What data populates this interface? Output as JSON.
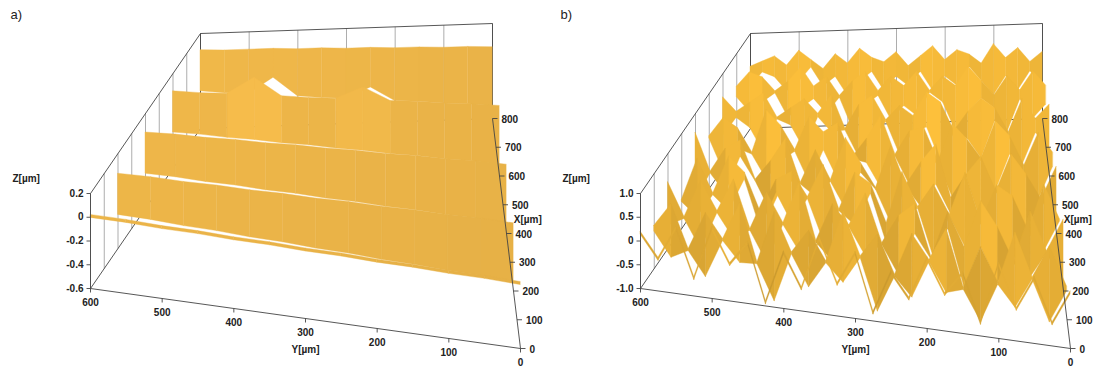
{
  "chart_data": [
    {
      "type": "surface",
      "title": "a)",
      "x_label": "X[µm]",
      "y_label": "Y[µm]",
      "z_label": "Z[µm]",
      "xlim": [
        0,
        800
      ],
      "xticks": [
        0,
        100,
        200,
        300,
        400,
        500,
        600,
        700,
        800
      ],
      "ylim": [
        0,
        600
      ],
      "yticks": [
        0,
        100,
        200,
        300,
        400,
        500,
        600
      ],
      "zlim": [
        -0.6,
        0.2
      ],
      "zticks": [
        0.2,
        0,
        -0.2,
        -0.4,
        -0.6
      ],
      "grid": true,
      "color": "#e2ad45",
      "x": [
        0,
        200,
        400,
        600,
        800
      ],
      "y": [
        0,
        50,
        100,
        150,
        200,
        250,
        300,
        350,
        400,
        450,
        500,
        550,
        600
      ],
      "z": [
        [
          -0.04,
          -0.03,
          -0.03,
          -0.02,
          -0.02,
          -0.01,
          -0.01,
          0,
          0,
          0.01,
          0.01,
          0.02,
          0.02
        ],
        [
          -0.03,
          -0.02,
          -0.02,
          -0.01,
          -0.01,
          0,
          0,
          0.01,
          0.01,
          0.02,
          0.02,
          0.03,
          0.03
        ],
        [
          -0.02,
          -0.01,
          -0.01,
          0,
          0,
          0.01,
          0.01,
          0.02,
          0.02,
          0.03,
          0.03,
          0.04,
          0.04
        ],
        [
          -0.01,
          0,
          0,
          0.01,
          0.01,
          0.12,
          0.02,
          0.02,
          0.03,
          0.18,
          0.04,
          0.04,
          0.05
        ],
        [
          0,
          0.01,
          0.01,
          0.02,
          0.02,
          0.03,
          0.03,
          0.04,
          0.04,
          0.05,
          0.05,
          0.05,
          0.06
        ]
      ]
    },
    {
      "type": "surface",
      "title": "b)",
      "x_label": "X[µm]",
      "y_label": "Y[µm]",
      "z_label": "Z[µm]",
      "xlim": [
        0,
        800
      ],
      "xticks": [
        0,
        100,
        200,
        300,
        400,
        500,
        600,
        700,
        800
      ],
      "ylim": [
        0,
        600
      ],
      "yticks": [
        0,
        100,
        200,
        300,
        400,
        500,
        600
      ],
      "zlim": [
        -1,
        1
      ],
      "zticks": [
        {
          "value": 1,
          "label": "1.0"
        },
        0.5,
        0,
        -0.5,
        {
          "value": -1,
          "label": "-1.0"
        }
      ],
      "grid": true,
      "color": "#f0b638",
      "x": [
        0,
        100,
        200,
        300,
        400,
        500,
        600,
        700,
        800
      ],
      "y": [
        0,
        25,
        50,
        75,
        100,
        125,
        150,
        175,
        200,
        225,
        250,
        275,
        300,
        325,
        350,
        375,
        400,
        425,
        450,
        475,
        500,
        525,
        550,
        575,
        600
      ],
      "z": [
        [
          0.2,
          -0.5,
          0.4,
          -0.3,
          0.6,
          -0.7,
          0.3,
          -0.2,
          0.5,
          -0.4,
          0.1,
          -0.8,
          0.4,
          -0.3,
          0.6,
          -0.5,
          0.2,
          -0.9,
          0.3,
          -0.2,
          0.5,
          -0.6,
          0.4,
          -0.3,
          0.2
        ],
        [
          -0.3,
          0.5,
          -0.2,
          0.7,
          -0.4,
          0.3,
          -0.6,
          0.6,
          -0.1,
          0.4,
          -0.5,
          0.3,
          -0.2,
          0.7,
          -0.4,
          0.2,
          -0.3,
          0.5,
          -0.6,
          0.6,
          -0.2,
          0.3,
          -0.5,
          0.4,
          -0.1
        ],
        [
          0.5,
          -0.2,
          0.6,
          -0.5,
          0.2,
          0.7,
          -0.3,
          0.4,
          -0.6,
          0.5,
          0.2,
          -0.4,
          0.6,
          -0.1,
          0.3,
          -0.5,
          0.7,
          -0.2,
          0.4,
          -0.4,
          0.6,
          -0.1,
          0.5,
          -0.3,
          0.4
        ],
        [
          -0.1,
          0.6,
          -0.4,
          0.3,
          0.5,
          -0.3,
          0.7,
          -0.2,
          0.4,
          -0.1,
          0.6,
          -0.5,
          0.3,
          0.5,
          -0.3,
          0.6,
          -0.1,
          0.4,
          0.2,
          -0.5,
          0.3,
          0.6,
          -0.2,
          0.5,
          -0.4
        ],
        [
          0.4,
          -0.3,
          0.2,
          0.6,
          -0.2,
          0.5,
          0.1,
          -0.4,
          0.7,
          0.3,
          -0.2,
          0.6,
          -0.3,
          0.2,
          0.7,
          -0.2,
          0.4,
          -0.3,
          0.6,
          0.1,
          -0.3,
          0.5,
          0.3,
          -0.2,
          0.6
        ],
        [
          0.1,
          0.5,
          -0.2,
          0.4,
          0.7,
          -0.1,
          0.3,
          0.6,
          -0.2,
          0.5,
          0.4,
          -0.1,
          0.7,
          0.2,
          -0.2,
          0.5,
          0.3,
          0.6,
          -0.1,
          0.4,
          0.7,
          -0.2,
          0.3,
          0.5,
          0.1
        ],
        [
          0.5,
          0.2,
          0.6,
          -0.1,
          0.4,
          0.6,
          0.3,
          -0.1,
          0.5,
          0.7,
          0.2,
          0.4,
          0.1,
          0.6,
          0.4,
          -0.1,
          0.6,
          0.2,
          0.5,
          0.3,
          0.1,
          0.6,
          0.4,
          0.2,
          0.5
        ],
        [
          0.3,
          0.6,
          0.2,
          0.5,
          0.1,
          0.4,
          0.7,
          0.3,
          0.5,
          0.2,
          0.6,
          0.3,
          0.5,
          0.2,
          0.6,
          0.4,
          0.1,
          0.5,
          0.3,
          0.7,
          0.4,
          0.2,
          0.5,
          0.6,
          0.3
        ],
        [
          0.4,
          0.2,
          0.5,
          0.3,
          0.6,
          0.2,
          0.4,
          0.5,
          0.3,
          0.6,
          0.4,
          0.2,
          0.5,
          0.3,
          0.4,
          0.6,
          0.3,
          0.5,
          0.2,
          0.4,
          0.6,
          0.3,
          0.5,
          0.4,
          0.3
        ]
      ]
    }
  ]
}
